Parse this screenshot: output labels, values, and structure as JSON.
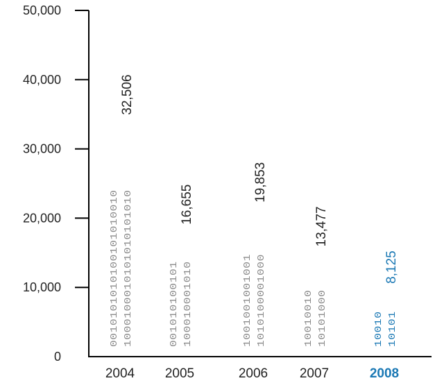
{
  "chart_data": {
    "type": "bar",
    "title": "",
    "xlabel": "",
    "ylabel": "",
    "ylim": [
      0,
      50000
    ],
    "yticks": [
      0,
      10000,
      20000,
      30000,
      40000,
      50000
    ],
    "ytick_labels": [
      "0",
      "10,000",
      "20,000",
      "30,000",
      "40,000",
      "50,000"
    ],
    "categories": [
      "2004",
      "2005",
      "2006",
      "2007",
      "2008"
    ],
    "values": [
      32506,
      16655,
      19853,
      13477,
      8125
    ],
    "value_labels": [
      "32,506",
      "16,655",
      "19,853",
      "13,477",
      "8,125"
    ],
    "bar_style": "binary-digit columns",
    "bar_text": [
      [
        "0010101010100101010010",
        "1000100010101010101010"
      ],
      [
        "001010100101",
        "100010001010"
      ],
      [
        "1001001001001",
        "1010100001000"
      ],
      [
        "10010010",
        "10101000"
      ],
      [
        "10010",
        "10101"
      ]
    ],
    "highlight_category": "2008",
    "colors": {
      "default_text": "#222222",
      "bits": "#8a8a8a",
      "highlight": "#1a78b4",
      "axis": "#000000"
    },
    "grid": false,
    "legend": "none"
  }
}
